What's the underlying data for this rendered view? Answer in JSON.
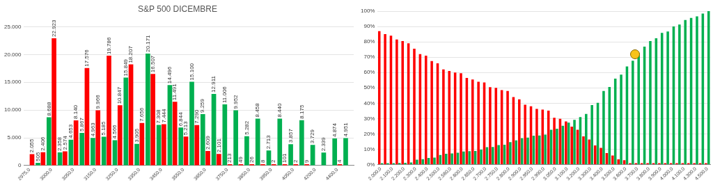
{
  "chart_data": [
    {
      "type": "bar",
      "title": "S&P 500 DICEMBRE",
      "categories": [
        "2975,0",
        null,
        "3000,0",
        null,
        "3050,0",
        null,
        "3150,0",
        null,
        "3250,0",
        null,
        "3350,0",
        null,
        "3450,0",
        null,
        "3550,0",
        null,
        "3650,0",
        null,
        "3750,0",
        null,
        "3850,0",
        null,
        "3950,0",
        null,
        "4050,0",
        null,
        "4200,0",
        null,
        "4400,0",
        null
      ],
      "series": [
        {
          "color": "#00b050",
          "values": [
            null,
            505,
            8688,
            2358,
            4653,
            5867,
            4963,
            5185,
            4566,
            15849,
            3905,
            20171,
            7308,
            14496,
            6844,
            15100,
            9259,
            12911,
            11006,
            9952,
            5282,
            8458,
            2713,
            8440,
            3857,
            8175,
            3729,
            2339,
            4874,
            4951
          ],
          "value_labels": [
            null,
            "505",
            "8.688",
            "2.358",
            "4.653",
            "5.867",
            "4.963",
            "5.185",
            "4.566",
            "15.849",
            "3.905",
            "20.171",
            "7.308",
            "14.496",
            "6.844",
            "15.100",
            "9.259",
            "12.911",
            "11.006",
            "9.952",
            "5.282",
            "8.458",
            "2.713",
            "8.440",
            "3.857",
            "8.175",
            "3.729",
            "2.339",
            "4.874",
            "4.951"
          ]
        },
        {
          "color": "#ff0000",
          "values": [
            2055,
            2406,
            22923,
            2574,
            8140,
            17576,
            9966,
            19786,
            10847,
            18207,
            7656,
            16507,
            7444,
            11491,
            5213,
            7290,
            2609,
            2101,
            213,
            49,
            26,
            8,
            2,
            101,
            2,
            9,
            null,
            null,
            4,
            null
          ],
          "value_labels": [
            "2.055",
            "2.406",
            "22.923",
            "2.574",
            "8.140",
            "17.576",
            "9.966",
            "19.786",
            "10.847",
            "18.207",
            "7.656",
            "16.507",
            "7.444",
            "11.491",
            "5.213",
            "7.290",
            "2.609",
            "2.101",
            "213",
            "49",
            "26",
            "8",
            "2",
            "101",
            "2",
            "9",
            null,
            null,
            "4",
            null
          ]
        }
      ],
      "ylim": [
        0,
        25000
      ],
      "yticks": [
        {
          "value": 0,
          "label": "0"
        },
        {
          "value": 5000,
          "label": "5.000"
        },
        {
          "value": 10000,
          "label": "10.000"
        },
        {
          "value": 15000,
          "label": "15.000"
        },
        {
          "value": 20000,
          "label": "20.000"
        },
        {
          "value": 25000,
          "label": "25.000"
        }
      ],
      "grid": "y"
    },
    {
      "type": "bar",
      "categories": [
        "2.000,0",
        null,
        "2.100,0",
        null,
        "2.200,0",
        null,
        "2.300,0",
        null,
        "2.400,0",
        null,
        "2.500,0",
        null,
        "2.560,0",
        null,
        "2.600,0",
        null,
        "2.650,0",
        null,
        "2.700,0",
        null,
        "2.750,0",
        null,
        "2.800,0",
        null,
        "2.900,0",
        null,
        "2.950,0",
        null,
        "2.990,0",
        null,
        "3.050,0",
        null,
        "3.100,0",
        null,
        "3.200,0",
        null,
        "3.300,0",
        null,
        "3.400,0",
        null,
        "3.500,0",
        null,
        "3.600,0",
        null,
        "3.700,0",
        null,
        "3.800,0",
        null,
        "3.900,0",
        null,
        "4.000,0",
        null,
        "4.100,0",
        null,
        "4.300,0",
        null,
        "4.500,0"
      ],
      "series": [
        {
          "color": "#ff0000",
          "values": [
            87,
            85,
            84,
            81.5,
            80.5,
            79,
            75.5,
            72,
            71,
            67.5,
            66,
            62,
            61,
            60,
            59.5,
            56.5,
            55.5,
            54,
            53.5,
            50.5,
            50,
            48.5,
            48,
            44,
            42.5,
            39,
            38,
            36.3,
            35.8,
            35.2,
            30.5,
            29.8,
            28.1,
            24.7,
            22.7,
            18.4,
            16.4,
            12.5,
            10.9,
            7.5,
            5.9,
            3.4,
            2.8,
            0.9,
            0.6,
            0.5,
            0.5,
            0.5,
            0.5,
            0.5,
            0.5,
            0.5,
            0.5,
            0.5,
            0.5,
            0.5,
            0.5
          ]
        },
        {
          "color": "#00b050",
          "values": [
            0.5,
            0.7,
            0.8,
            1,
            1.2,
            1.4,
            3.2,
            3.5,
            4.3,
            4.6,
            6.3,
            7,
            7.3,
            7.7,
            8.5,
            8.8,
            8.9,
            9.8,
            11.3,
            11.5,
            12.7,
            12.9,
            14.6,
            15.8,
            17.2,
            17.6,
            18.8,
            19,
            19.5,
            22.7,
            23.4,
            25.3,
            27.3,
            29.2,
            31,
            33,
            38.8,
            40.3,
            48,
            50.6,
            56,
            58.6,
            64,
            67.7,
            72.7,
            76.9,
            80.5,
            82.3,
            85.8,
            86.7,
            90,
            91.3,
            94.2,
            95.6,
            96.6,
            98.4,
            100
          ]
        }
      ],
      "ylim": [
        0,
        100
      ],
      "yticks": [
        {
          "value": 0,
          "label": "0%"
        },
        {
          "value": 10,
          "label": "10%"
        },
        {
          "value": 20,
          "label": "20%"
        },
        {
          "value": 30,
          "label": "30%"
        },
        {
          "value": 40,
          "label": "40%"
        },
        {
          "value": 50,
          "label": "50%"
        },
        {
          "value": 60,
          "label": "60%"
        },
        {
          "value": 70,
          "label": "70%"
        },
        {
          "value": 80,
          "label": "80%"
        },
        {
          "value": 90,
          "label": "90%"
        },
        {
          "value": 100,
          "label": "100%"
        }
      ],
      "grid": "y"
    }
  ]
}
